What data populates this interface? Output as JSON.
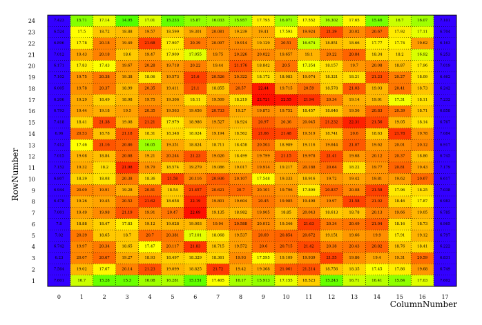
{
  "chart_data": {
    "type": "heatmap",
    "xlabel": "ColumnNumber",
    "ylabel": "RowNumber",
    "x_categories": [
      0,
      1,
      2,
      3,
      4,
      5,
      6,
      7,
      8,
      9,
      10,
      11,
      12,
      13,
      14,
      15,
      16,
      17
    ],
    "y_categories": [
      1,
      2,
      3,
      4,
      5,
      6,
      7,
      8,
      9,
      10,
      11,
      12,
      13,
      14,
      15,
      16,
      17,
      18,
      19,
      20,
      21,
      22,
      23,
      24
    ],
    "color_scale": {
      "low": "#3300ff",
      "mid_low": "#33ff00",
      "mid": "#ffff00",
      "mid_high": "#ff8800",
      "high": "#ff0000",
      "vmin": 14.5,
      "vmax": 23.0,
      "low_cut": 12.0
    },
    "grid": "dotted",
    "rows": [
      {
        "y": 24,
        "values": [
          7.423,
          15.71,
          17.14,
          14.95,
          17.01,
          15.233,
          15.87,
          16.033,
          15.957,
          17.795,
          16.071,
          17.552,
          16.302,
          17.65,
          15.46,
          16.7,
          16.07,
          7.101
        ]
      },
      {
        "y": 23,
        "values": [
          6.524,
          17.5,
          18.72,
          18.88,
          19.57,
          18.599,
          19.301,
          20.081,
          19.239,
          19.41,
          17.593,
          19.924,
          21.39,
          20.02,
          20.67,
          17.92,
          17.11,
          6.704
        ]
      },
      {
        "y": 22,
        "values": [
          6.896,
          17.78,
          20.18,
          19.49,
          21.68,
          17.907,
          20.39,
          20.097,
          19.914,
          19.129,
          20.51,
          16.674,
          18.851,
          18.66,
          17.77,
          17.74,
          19.62,
          6.163
        ]
      },
      {
        "y": 21,
        "values": [
          7.012,
          19.43,
          20.18,
          18.6,
          19.47,
          17.909,
          17.055,
          19.75,
          20.326,
          20.022,
          19.657,
          19.1,
          20.22,
          20.84,
          18.34,
          18.2,
          16.92,
          6.253
        ]
      },
      {
        "y": 20,
        "values": [
          6.171,
          17.83,
          17.43,
          19.67,
          20.28,
          19.718,
          20.22,
          19.44,
          21.176,
          18.842,
          20.5,
          17.354,
          18.157,
          19.7,
          20.08,
          18.87,
          17.96,
          7.019
        ]
      },
      {
        "y": 19,
        "values": [
          7.102,
          19.75,
          20.38,
          19.38,
          18.06,
          19.573,
          21.6,
          20.526,
          20.322,
          18.172,
          18.983,
          19.074,
          18.321,
          18.21,
          21.23,
          20.27,
          18.09,
          6.462
        ]
      },
      {
        "y": 18,
        "values": [
          6.005,
          19.78,
          20.37,
          18.99,
          20.35,
          19.411,
          21.1,
          18.855,
          20.57,
          22.44,
          19.715,
          20.59,
          18.578,
          21.03,
          19.03,
          20.41,
          18.73,
          6.242
        ]
      },
      {
        "y": 17,
        "values": [
          6.206,
          19.29,
          18.49,
          18.98,
          19.75,
          19.306,
          18.11,
          19.509,
          18.219,
          22.721,
          22.55,
          21.94,
          20.34,
          19.14,
          19.01,
          17.31,
          18.11,
          7.232
        ]
      },
      {
        "y": 16,
        "values": [
          6.793,
          19.44,
          19.18,
          19.5,
          20.35,
          19.563,
          19.456,
          20.733,
          19.27,
          19.873,
          19.752,
          18.457,
          18.646,
          19.56,
          20.83,
          20.39,
          18.71,
          6.858
        ]
      },
      {
        "y": 15,
        "values": [
          7.418,
          18.41,
          21.38,
          19.08,
          21.21,
          17.979,
          18.986,
          19.527,
          18.924,
          20.97,
          20.36,
          20.045,
          21.232,
          22.31,
          21.56,
          19.05,
          18.14,
          6.767
        ]
      },
      {
        "y": 14,
        "values": [
          6.96,
          20.53,
          18.78,
          21.18,
          18.31,
          18.348,
          18.024,
          19.194,
          18.562,
          21.66,
          21.48,
          19.519,
          18.741,
          20.6,
          18.63,
          21.78,
          19.78,
          7.084
        ]
      },
      {
        "y": 13,
        "values": [
          7.412,
          17.46,
          21.16,
          20.86,
          16.05,
          19.351,
          18.824,
          18.711,
          18.458,
          20.503,
          18.989,
          19.116,
          19.644,
          21.07,
          19.62,
          20.01,
          20.12,
          6.917
        ]
      },
      {
        "y": 12,
        "values": [
          7.015,
          19.08,
          18.84,
          20.68,
          19.21,
          20.244,
          21.23,
          19.626,
          18.499,
          19.799,
          21.15,
          19.978,
          21.41,
          19.68,
          20.12,
          20.37,
          18.86,
          6.745
        ]
      },
      {
        "y": 11,
        "values": [
          7.152,
          19.32,
          18.2,
          21.98,
          19.79,
          18.574,
          19.279,
          19.086,
          19.017,
          19.914,
          19.217,
          20.188,
          20.64,
          18.22,
          19.77,
          20.81,
          19.43,
          7.179
        ]
      },
      {
        "y": 10,
        "values": [
          6.807,
          18.39,
          18.08,
          20.38,
          18.36,
          21.58,
          20.116,
          20.936,
          20.107,
          17.548,
          19.333,
          18.916,
          19.72,
          19.42,
          19.81,
          19.62,
          20.67,
          6.617
        ]
      },
      {
        "y": 9,
        "values": [
          6.944,
          20.09,
          19.91,
          19.28,
          20.81,
          18.54,
          21.457,
          20.621,
          20.7,
          20.101,
          19.796,
          17.899,
          20.837,
          20.08,
          21.58,
          17.96,
          18.25,
          7.038
        ]
      },
      {
        "y": 8,
        "values": [
          6.478,
          19.26,
          19.45,
          20.52,
          21.62,
          18.658,
          22.19,
          19.801,
          19.604,
          20.45,
          19.985,
          19.498,
          19.97,
          21.58,
          21.02,
          18.46,
          17.87,
          6.983
        ]
      },
      {
        "y": 7,
        "values": [
          7.001,
          19.49,
          19.98,
          21.19,
          19.91,
          20.47,
          22.69,
          19.135,
          18.982,
          19.905,
          18.85,
          20.043,
          18.613,
          18.78,
          20.13,
          19.66,
          19.05,
          6.785
        ]
      },
      {
        "y": 6,
        "values": [
          7.8,
          18.88,
          18.47,
          17.83,
          19.12,
          19.028,
          19.003,
          19.94,
          20.588,
          20.012,
          19.346,
          21.63,
          20.34,
          20.49,
          21.04,
          18.16,
          18.73,
          6.965
        ]
      },
      {
        "y": 5,
        "values": [
          7.02,
          20.39,
          18.65,
          18.7,
          20.7,
          20.381,
          17.101,
          18.068,
          19.537,
          20.69,
          20.854,
          20.672,
          19.151,
          19.66,
          19.9,
          17.91,
          19.12,
          6.797
        ]
      },
      {
        "y": 4,
        "values": [
          6.742,
          19.97,
          20.34,
          18.65,
          17.47,
          20.117,
          21.83,
          18.715,
          19.572,
          20.6,
          20.715,
          21.42,
          20.38,
          20.43,
          20.82,
          18.76,
          18.41,
          6.222
        ]
      },
      {
        "y": 3,
        "values": [
          6.23,
          20.07,
          20.67,
          19.27,
          18.93,
          18.497,
          18.329,
          18.361,
          19.93,
          17.595,
          19.109,
          19.939,
          21.55,
          19.86,
          19.4,
          19.31,
          20.59,
          6.831
        ]
      },
      {
        "y": 2,
        "values": [
          7.564,
          19.02,
          17.67,
          20.14,
          21.23,
          19.099,
          18.825,
          21.72,
          19.42,
          19.368,
          21.061,
          21.214,
          18.756,
          18.35,
          17.45,
          17.86,
          19.68,
          6.749
        ]
      },
      {
        "y": 1,
        "values": [
          7.601,
          16.7,
          15.28,
          15.3,
          16.08,
          16.281,
          15.151,
          17.405,
          16.17,
          15.913,
          17.155,
          18.523,
          15.243,
          16.71,
          16.41,
          15.84,
          17.03,
          7.602
        ]
      }
    ]
  }
}
